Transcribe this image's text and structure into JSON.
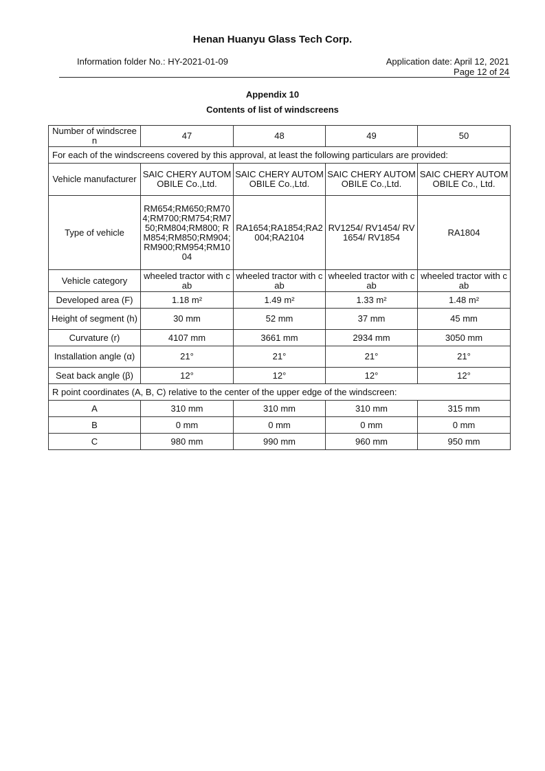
{
  "header": {
    "company": "Henan Huanyu Glass Tech Corp.",
    "folder_no": "Information folder No.: HY-2021-01-09",
    "application_date": "Application date: April 12, 2021",
    "page": "Page 12 of 24"
  },
  "title": {
    "appendix": "Appendix 10",
    "subtitle": "Contents of list of windscreens"
  },
  "table": {
    "number_label": "Number of windscreen",
    "numbers": [
      "47",
      "48",
      "49",
      "50"
    ],
    "intro": "For each of the windscreens covered by this approval, at least the following particulars are provided:",
    "rows": [
      {
        "label": "Vehicle manufacturer",
        "values": [
          "SAIC CHERY AUTOMOBILE Co.,Ltd.",
          "SAIC CHERY AUTOMOBILE Co.,Ltd.",
          "SAIC CHERY AUTOMOBILE Co.,Ltd.",
          "SAIC CHERY AUTOMOBILE Co., Ltd."
        ]
      },
      {
        "label": "Type of vehicle",
        "values": [
          "RM654;RM650;RM704;RM700;RM754;RM750;RM804;RM800; RM854;RM850;RM904;RM900;RM954;RM1004",
          "RA1654;RA1854;RA2004;RA2104",
          "RV1254/ RV1454/ RV1654/ RV1854",
          "RA1804"
        ]
      },
      {
        "label": "Vehicle category",
        "values": [
          "wheeled tractor with cab",
          "wheeled tractor with cab",
          "wheeled tractor with cab",
          "wheeled tractor with cab"
        ]
      },
      {
        "label": "Developed area (F)",
        "values": [
          "1.18 m²",
          "1.49 m²",
          "1.33 m²",
          "1.48 m²"
        ]
      },
      {
        "label": "Height of segment (h)",
        "values": [
          "30 mm",
          "52 mm",
          "37 mm",
          "45 mm"
        ]
      },
      {
        "label": "Curvature (r)",
        "values": [
          "4107 mm",
          "3661 mm",
          "2934 mm",
          "3050 mm"
        ]
      },
      {
        "label": "Installation angle (α)",
        "values": [
          "21°",
          "21°",
          "21°",
          "21°"
        ]
      },
      {
        "label": "Seat back angle (β)",
        "values": [
          "12°",
          "12°",
          "12°",
          "12°"
        ]
      }
    ],
    "r_point_intro": "R point coordinates (A, B, C) relative to the center of the upper edge of the windscreen:",
    "r_rows": [
      {
        "label": "A",
        "values": [
          "310 mm",
          "310 mm",
          "310 mm",
          "315 mm"
        ]
      },
      {
        "label": "B",
        "values": [
          "0 mm",
          "0 mm",
          "0 mm",
          "0 mm"
        ]
      },
      {
        "label": "C",
        "values": [
          "980 mm",
          "990 mm",
          "960 mm",
          "950 mm"
        ]
      }
    ]
  }
}
